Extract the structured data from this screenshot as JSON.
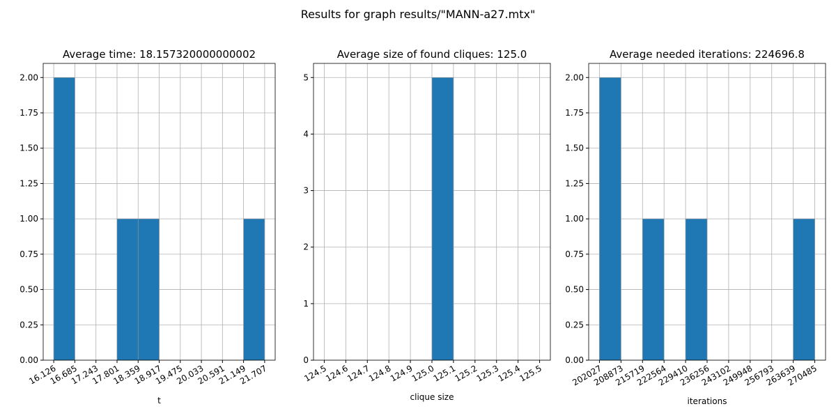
{
  "title": "Results for graph results/\"MANN-a27.mtx\"",
  "chart_data": [
    {
      "type": "histogram",
      "title": "Average time: 18.157320000000002",
      "xlabel": "t",
      "bins": [
        16.126,
        16.685,
        17.243,
        17.801,
        18.359,
        18.917,
        19.475,
        20.033,
        20.591,
        21.149,
        21.707
      ],
      "values": [
        2,
        0,
        0,
        1,
        1,
        0,
        0,
        0,
        0,
        1
      ],
      "color": "#1f77b4",
      "grid": true,
      "xlim": [
        15.847,
        21.986
      ],
      "xticks": [
        16.126,
        16.685,
        17.243,
        17.801,
        18.359,
        18.917,
        19.475,
        20.033,
        20.591,
        21.149,
        21.707
      ],
      "ylim": [
        0,
        2.1
      ],
      "yticks": [
        {
          "value": 0,
          "label": "0.00"
        },
        0.25,
        {
          "value": 0.5,
          "label": "0.50"
        },
        0.75,
        {
          "value": 1,
          "label": "1.00"
        },
        1.25,
        {
          "value": 1.5,
          "label": "1.50"
        },
        1.75,
        {
          "value": 2,
          "label": "2.00"
        }
      ]
    },
    {
      "type": "histogram",
      "title": "Average size of found cliques: 125.0",
      "xlabel": "clique size",
      "bins": [
        124.5,
        124.6,
        124.7,
        124.8,
        124.9,
        125.0,
        125.1,
        125.2,
        125.3,
        125.4,
        125.5
      ],
      "values": [
        0,
        0,
        0,
        0,
        0,
        5,
        0,
        0,
        0,
        0
      ],
      "color": "#1f77b4",
      "grid": true,
      "xlim": [
        124.45,
        125.55
      ],
      "xticks": [
        124.5,
        124.6,
        124.7,
        124.8,
        124.9,
        {
          "value": 125,
          "label": "125.0"
        },
        125.1,
        125.2,
        125.3,
        125.4,
        125.5
      ],
      "ylim": [
        0,
        5.25
      ],
      "yticks": [
        0,
        1,
        2,
        3,
        4,
        5
      ]
    },
    {
      "type": "histogram",
      "title": "Average needed iterations: 224696.8",
      "xlabel": "iterations",
      "bins": [
        202027,
        208873,
        215719,
        222564,
        229410,
        236256,
        243102,
        249948,
        256793,
        263639,
        270485
      ],
      "values": [
        2,
        0,
        1,
        0,
        1,
        0,
        0,
        0,
        0,
        1
      ],
      "color": "#1f77b4",
      "grid": true,
      "xlim": [
        198604,
        273908
      ],
      "xticks": [
        202027,
        208873,
        215719,
        222564,
        229410,
        236256,
        243102,
        249948,
        256793,
        263639,
        270485
      ],
      "ylim": [
        0,
        2.1
      ],
      "yticks": [
        {
          "value": 0,
          "label": "0.00"
        },
        0.25,
        {
          "value": 0.5,
          "label": "0.50"
        },
        0.75,
        {
          "value": 1,
          "label": "1.00"
        },
        1.25,
        {
          "value": 1.5,
          "label": "1.50"
        },
        1.75,
        {
          "value": 2,
          "label": "2.00"
        }
      ]
    }
  ]
}
